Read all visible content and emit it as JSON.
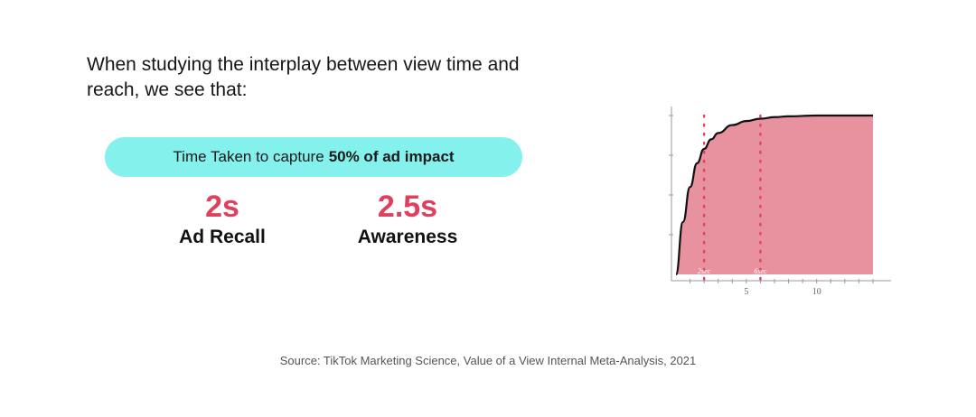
{
  "headline": "When studying the interplay between view time and reach, we see that:",
  "pill": {
    "prefix": "Time Taken to capture",
    "emphasis": "50% of ad impact",
    "color": "#84f1ec"
  },
  "stats": [
    {
      "value": "2s",
      "label": "Ad Recall"
    },
    {
      "value": "2.5s",
      "label": "Awareness"
    }
  ],
  "accent_color": "#e0405f",
  "source": "Source: TikTok Marketing Science, Value of a View Internal Meta-Analysis, 2021",
  "chart_data": {
    "type": "area",
    "x": [
      0,
      0.5,
      1,
      1.5,
      2,
      2.5,
      3,
      4,
      5,
      6,
      7,
      8,
      10,
      12,
      14
    ],
    "y": [
      0,
      0.33,
      0.55,
      0.7,
      0.79,
      0.85,
      0.89,
      0.94,
      0.965,
      0.98,
      0.99,
      0.995,
      1.0,
      1.0,
      1.0
    ],
    "xlim": [
      -0.3,
      15
    ],
    "ylim": [
      0,
      1.1
    ],
    "x_ticks": [
      5,
      10
    ],
    "markers": [
      {
        "x": 2,
        "label": "2sec"
      },
      {
        "x": 6,
        "label": "6sec"
      }
    ],
    "fill_color": "#e8929f",
    "line_color": "#111111",
    "marker_color": "#e0405f",
    "grid": false
  }
}
